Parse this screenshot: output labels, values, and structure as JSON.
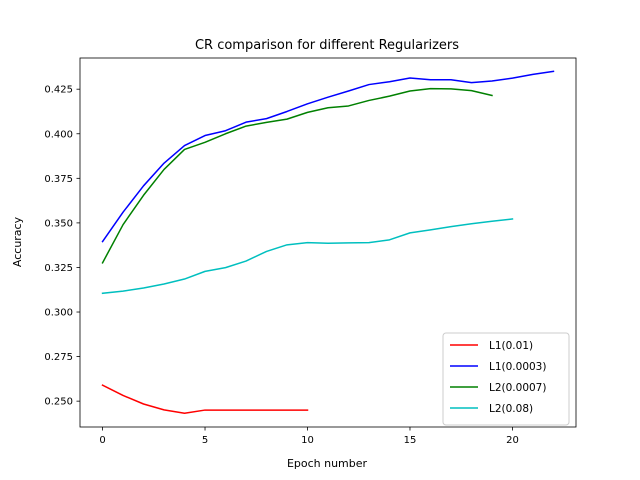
{
  "chart_data": {
    "type": "line",
    "title": "CR comparison for different Regularizers",
    "xlabel": "Epoch number",
    "ylabel": "Accuracy",
    "xlim": [
      -1.1,
      23.1
    ],
    "ylim": [
      0.2355,
      0.4425
    ],
    "xticks": [
      0,
      5,
      10,
      15,
      20
    ],
    "yticks": [
      0.25,
      0.275,
      0.3,
      0.325,
      0.35,
      0.375,
      0.4,
      0.425
    ],
    "ytick_labels": [
      "0.250",
      "0.275",
      "0.300",
      "0.325",
      "0.350",
      "0.375",
      "0.400",
      "0.425"
    ],
    "legend_position": "lower-right",
    "grid": false,
    "series": [
      {
        "name": "L1(0.01)",
        "color": "#ff0000",
        "x": [
          0,
          1,
          2,
          3,
          4,
          5,
          6,
          7,
          8,
          9,
          10
        ],
        "values": [
          0.259,
          0.2532,
          0.2484,
          0.2451,
          0.2432,
          0.245,
          0.245,
          0.245,
          0.245,
          0.245,
          0.245
        ]
      },
      {
        "name": "L1(0.0003)",
        "color": "#0000ff",
        "x": [
          0,
          1,
          2,
          3,
          4,
          5,
          6,
          7,
          8,
          9,
          10,
          11,
          12,
          13,
          14,
          15,
          16,
          17,
          18,
          19,
          20,
          21,
          22
        ],
        "values": [
          0.3395,
          0.356,
          0.3708,
          0.3835,
          0.3934,
          0.399,
          0.4017,
          0.4065,
          0.4085,
          0.4125,
          0.4168,
          0.4205,
          0.424,
          0.4276,
          0.4292,
          0.4313,
          0.4303,
          0.4303,
          0.4287,
          0.4296,
          0.4312,
          0.4333,
          0.435
        ]
      },
      {
        "name": "L2(0.0007)",
        "color": "#008000",
        "x": [
          0,
          1,
          2,
          3,
          4,
          5,
          6,
          7,
          8,
          9,
          10,
          11,
          12,
          13,
          14,
          15,
          16,
          17,
          18,
          19
        ],
        "values": [
          0.3276,
          0.349,
          0.3655,
          0.38,
          0.3912,
          0.3952,
          0.4,
          0.4043,
          0.4064,
          0.4082,
          0.412,
          0.4146,
          0.4156,
          0.4187,
          0.4211,
          0.424,
          0.4253,
          0.4252,
          0.4242,
          0.4215
        ]
      },
      {
        "name": "L2(0.08)",
        "color": "#00bfbf",
        "x": [
          0,
          1,
          2,
          3,
          4,
          5,
          6,
          7,
          8,
          9,
          10,
          11,
          12,
          13,
          14,
          15,
          16,
          17,
          18,
          19,
          20
        ],
        "values": [
          0.3105,
          0.3117,
          0.3135,
          0.3157,
          0.3185,
          0.3228,
          0.3249,
          0.3286,
          0.334,
          0.3377,
          0.3389,
          0.3386,
          0.3388,
          0.3389,
          0.3405,
          0.3444,
          0.3461,
          0.3479,
          0.3495,
          0.3509,
          0.3522
        ]
      }
    ]
  }
}
